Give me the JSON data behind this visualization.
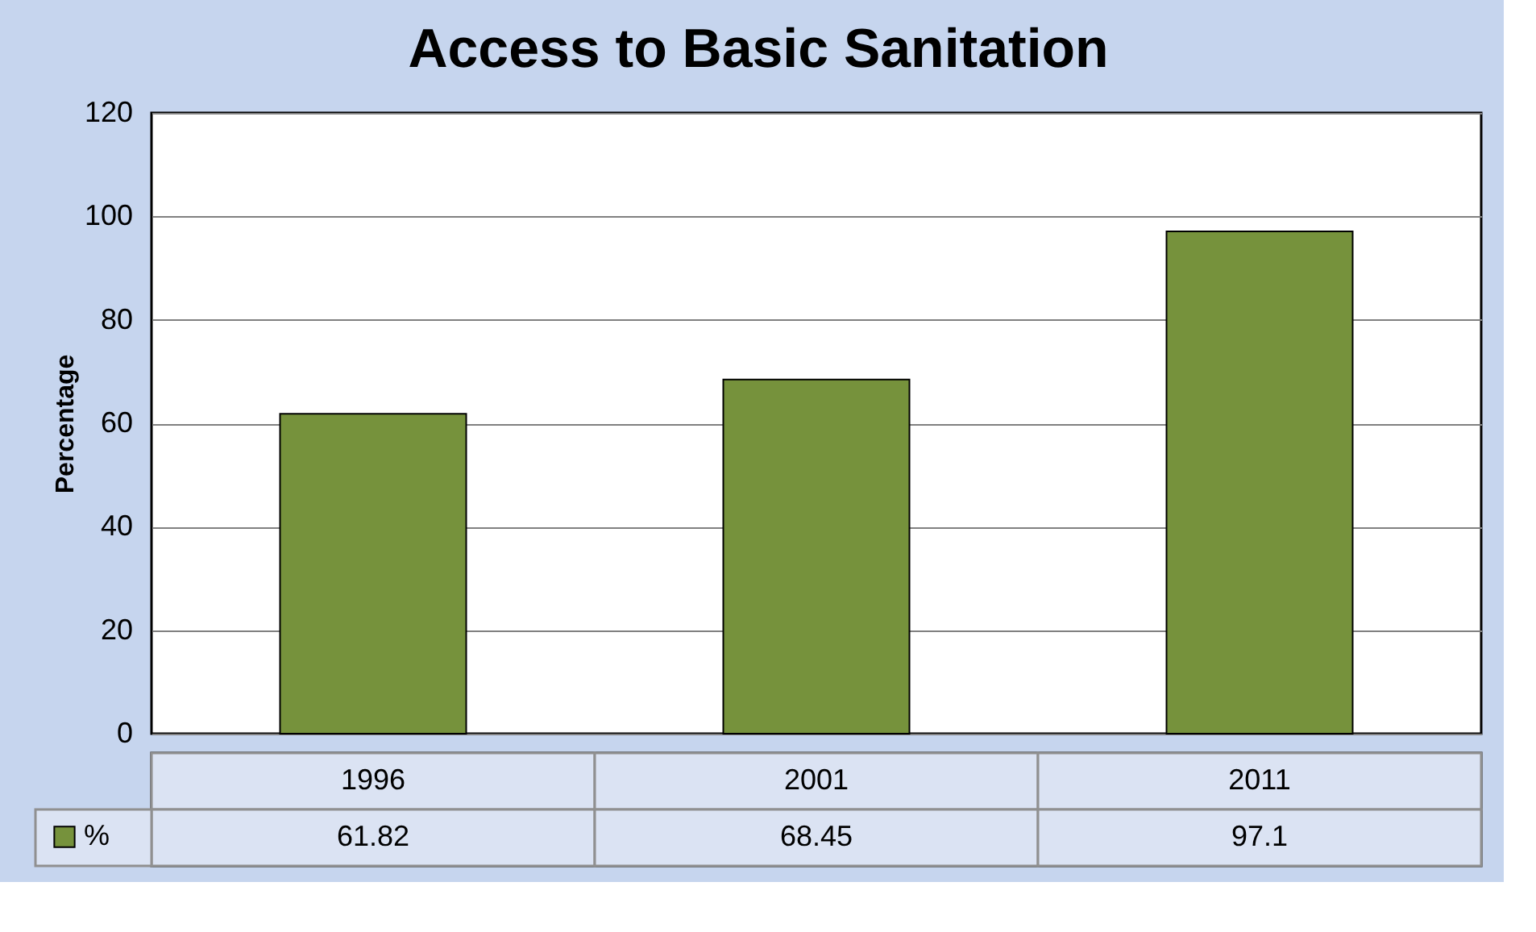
{
  "chart_data": {
    "type": "bar",
    "title": "Access to Basic Sanitation",
    "ylabel": "Percentage",
    "categories": [
      "1996",
      "2001",
      "2011"
    ],
    "series": [
      {
        "name": "%",
        "color": "#76923c",
        "values": [
          61.82,
          68.45,
          97.1
        ]
      }
    ],
    "ylim": [
      0,
      120
    ],
    "yticks": [
      0,
      20,
      40,
      60,
      80,
      100,
      120
    ],
    "grid": "y",
    "data_labels": true,
    "legend": "bottom"
  }
}
